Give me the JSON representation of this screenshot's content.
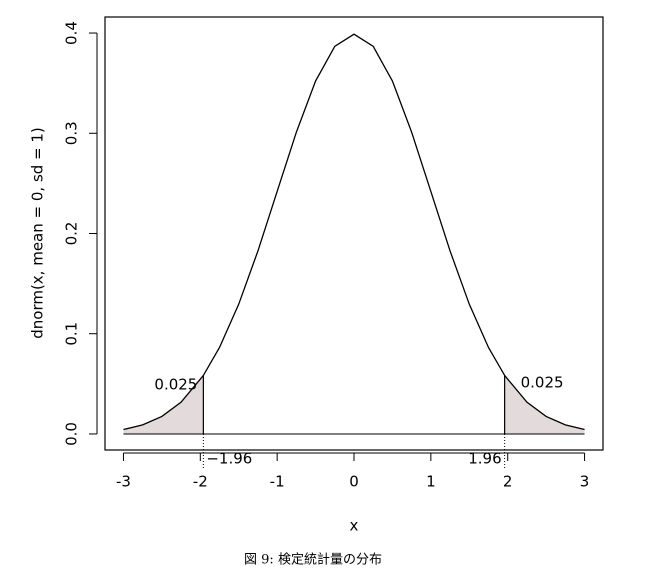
{
  "chart_data": {
    "type": "line",
    "x_label": "x",
    "y_label": "dnorm(x, mean = 0, sd = 1)",
    "caption": "図 9: 検定統計量の分布",
    "x": [
      -3,
      -2.75,
      -2.5,
      -2.25,
      -1.96,
      -1.75,
      -1.5,
      -1.25,
      -1,
      -0.75,
      -0.5,
      -0.25,
      0,
      0.25,
      0.5,
      0.75,
      1,
      1.25,
      1.5,
      1.75,
      1.96,
      2.25,
      2.5,
      2.75,
      3
    ],
    "values": [
      0.0044,
      0.0091,
      0.0175,
      0.0317,
      0.0584,
      0.0863,
      0.1295,
      0.1826,
      0.242,
      0.3011,
      0.3521,
      0.3867,
      0.3989,
      0.3867,
      0.3521,
      0.3011,
      0.242,
      0.1826,
      0.1295,
      0.0863,
      0.0584,
      0.0317,
      0.0175,
      0.0091,
      0.0044
    ],
    "color": "#000000",
    "tail_color": "#e2dadb",
    "critical_values": [
      {
        "value": -1.96,
        "label": "−1.96"
      },
      {
        "value": 1.96,
        "label": "1.96"
      }
    ],
    "tail_areas": [
      0.025,
      0.025
    ],
    "xlim": [
      -3.24,
      3.24
    ],
    "ylim": [
      -0.016,
      0.416
    ],
    "xticks": [
      -3,
      -2,
      -1,
      0,
      1,
      2,
      3
    ],
    "yticks": [
      {
        "value": 0,
        "label": "0.0"
      },
      0.1,
      0.2,
      0.3,
      0.4
    ]
  }
}
